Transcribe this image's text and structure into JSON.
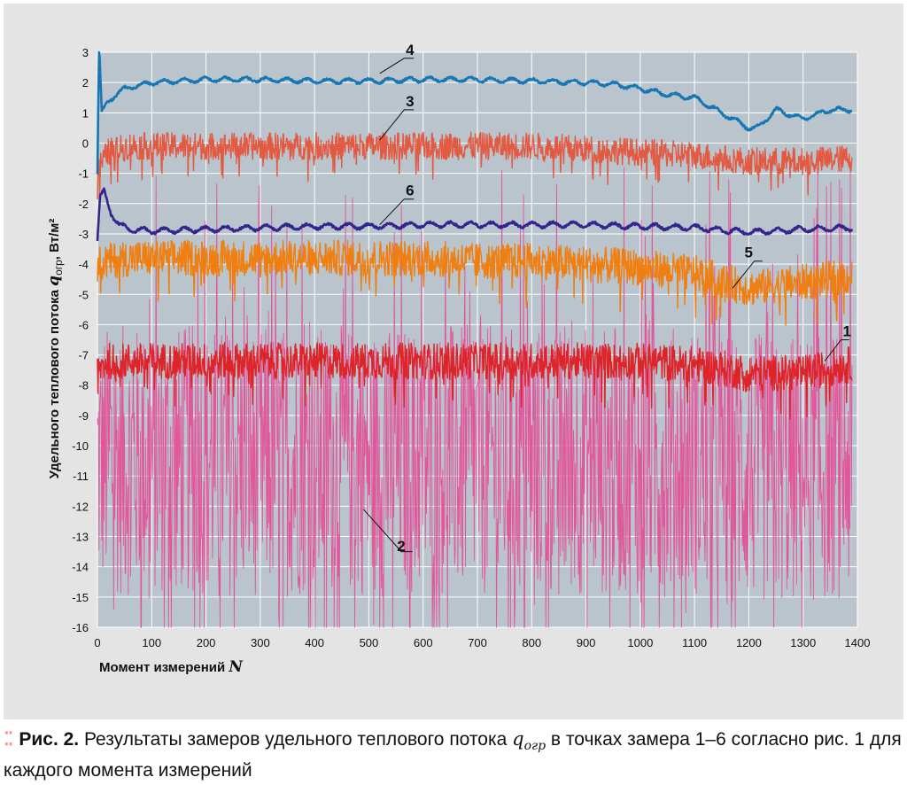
{
  "chart_data": {
    "type": "line",
    "xlabel": "Момент измерений",
    "xlabel_var": "N",
    "ylabel": "Удельного теплового потока",
    "ylabel_var": "q",
    "ylabel_sub": "огр",
    "ylabel_unit": ", Вт/м²",
    "xlim": [
      0,
      1400
    ],
    "ylim": [
      -16,
      3
    ],
    "x_ticks": [
      0,
      100,
      200,
      300,
      400,
      500,
      600,
      700,
      800,
      900,
      1000,
      1100,
      1200,
      1300,
      1400
    ],
    "y_ticks": [
      3,
      2,
      1,
      0,
      -1,
      -2,
      -3,
      -4,
      -5,
      -6,
      -7,
      -8,
      -9,
      -10,
      -11,
      -12,
      -13,
      -14,
      -15,
      -16
    ],
    "grid": true,
    "legend": "labels on lines",
    "series": [
      {
        "name": "2",
        "color": "#e0589b",
        "x": [
          0,
          20,
          60,
          100,
          200,
          300,
          400,
          500,
          600,
          700,
          800,
          900,
          1000,
          1100,
          1200,
          1300,
          1390
        ],
        "center": [
          -10.5,
          -10.5,
          -10.5,
          -10.5,
          -10.5,
          -10.5,
          -10.5,
          -10.5,
          -10.5,
          -10.5,
          -10.5,
          -10.5,
          -10.5,
          -10.5,
          -10.8,
          -10.8,
          -10.5
        ],
        "amplitude": 4.5
      },
      {
        "name": "1",
        "color": "#dd2428",
        "x": [
          0,
          20,
          60,
          100,
          200,
          300,
          400,
          500,
          600,
          700,
          800,
          900,
          1000,
          1100,
          1200,
          1300,
          1390
        ],
        "center": [
          -7.5,
          -7.2,
          -7.2,
          -7.2,
          -7.2,
          -7.2,
          -7.2,
          -7.2,
          -7.2,
          -7.2,
          -7.2,
          -7.2,
          -7.2,
          -7.3,
          -7.6,
          -7.6,
          -7.3
        ],
        "amplitude": 0.6
      },
      {
        "name": "5",
        "color": "#ef7f10",
        "x": [
          0,
          20,
          60,
          100,
          200,
          300,
          400,
          500,
          600,
          700,
          800,
          900,
          1000,
          1100,
          1200,
          1300,
          1390
        ],
        "center": [
          -4.0,
          -3.9,
          -3.8,
          -3.8,
          -3.8,
          -3.8,
          -3.8,
          -3.8,
          -3.8,
          -3.9,
          -3.9,
          -4.0,
          -4.1,
          -4.3,
          -4.8,
          -4.6,
          -4.4
        ],
        "amplitude": 0.6
      },
      {
        "name": "3",
        "color": "#e35a43",
        "x": [
          0,
          20,
          60,
          100,
          200,
          300,
          400,
          500,
          600,
          700,
          800,
          900,
          1000,
          1100,
          1200,
          1300,
          1390
        ],
        "center": [
          -0.9,
          -0.3,
          -0.1,
          -0.1,
          -0.1,
          -0.1,
          -0.1,
          -0.1,
          -0.1,
          -0.1,
          -0.1,
          -0.2,
          -0.3,
          -0.4,
          -0.6,
          -0.6,
          -0.5
        ],
        "amplitude": 0.45
      },
      {
        "name": "6",
        "color": "#33248e",
        "x": [
          0,
          5,
          12,
          25,
          40,
          60,
          100,
          200,
          300,
          400,
          500,
          600,
          700,
          800,
          900,
          1000,
          1100,
          1200,
          1300,
          1390
        ],
        "center": [
          -3.2,
          -1.8,
          -1.6,
          -2.3,
          -2.7,
          -2.85,
          -2.9,
          -2.85,
          -2.8,
          -2.75,
          -2.75,
          -2.7,
          -2.7,
          -2.7,
          -2.7,
          -2.75,
          -2.8,
          -2.95,
          -2.85,
          -2.8
        ],
        "amplitude": 0.08
      },
      {
        "name": "4",
        "color": "#1776b4",
        "x": [
          0,
          3,
          8,
          20,
          50,
          100,
          200,
          300,
          400,
          500,
          600,
          700,
          800,
          900,
          950,
          1000,
          1050,
          1100,
          1150,
          1200,
          1215,
          1250,
          1300,
          1350,
          1390
        ],
        "center": [
          -1.0,
          3.2,
          1.0,
          1.4,
          1.8,
          2.0,
          2.1,
          2.1,
          2.05,
          2.05,
          2.1,
          2.1,
          2.05,
          2.0,
          1.95,
          1.8,
          1.6,
          1.5,
          1.0,
          0.5,
          0.5,
          1.1,
          0.8,
          1.1,
          1.1
        ],
        "amplitude": 0.07
      }
    ],
    "labels": [
      {
        "text": "4",
        "x": 695,
        "y": 2.9
      },
      {
        "text": "3",
        "x": 695,
        "y": 1.3
      },
      {
        "text": "6",
        "x": 695,
        "y": -1.6
      },
      {
        "text": "5",
        "x": 1145,
        "y": -3.5
      },
      {
        "text": "1",
        "x": 1335,
        "y": -6.3
      },
      {
        "text": "2",
        "x": 570,
        "y": -13.5
      }
    ]
  },
  "caption": {
    "bullet": "⁚⁚",
    "fig_label": "Рис. 2.",
    "text_before": " Результаты замеров удельного теплового потока ",
    "q_symbol": "q",
    "q_sub": "огр",
    "text_after": " в точках замера 1–6 согласно рис. 1 для каждого момента измерений"
  },
  "colors": {
    "panel_bg": "#e4e4e4",
    "plot_bg": "#b9c4cc",
    "grid": "#ffffff"
  }
}
